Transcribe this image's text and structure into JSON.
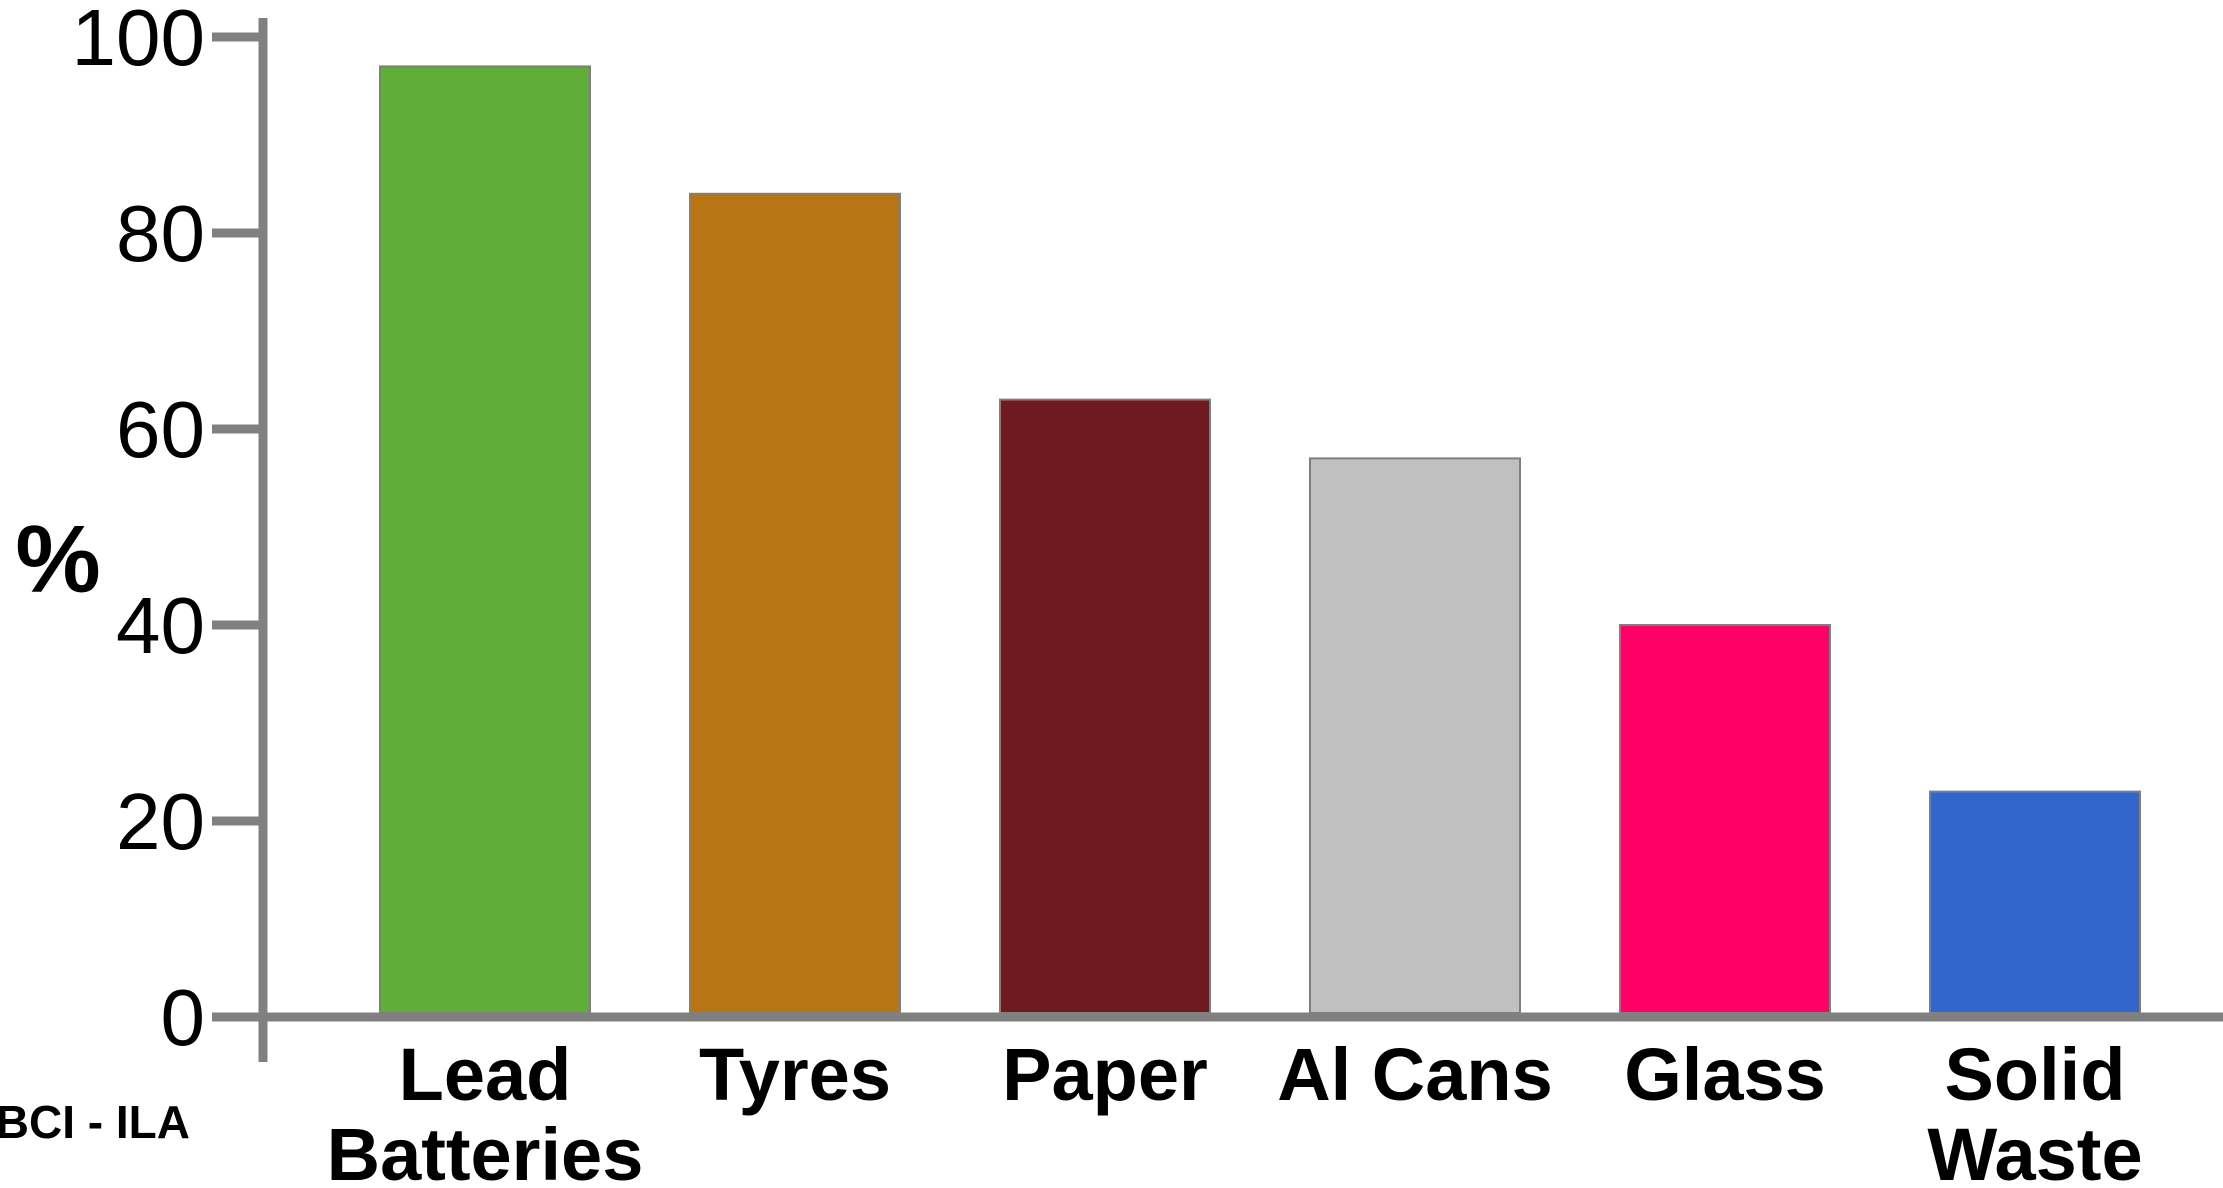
{
  "chart_data": {
    "type": "bar",
    "title": "",
    "xlabel": "",
    "ylabel": "%",
    "ylim": [
      0,
      100
    ],
    "yticks": [
      0,
      20,
      40,
      60,
      80,
      100
    ],
    "grid": false,
    "legend": "none",
    "categories": [
      [
        "Lead",
        "Batteries"
      ],
      [
        "Tyres"
      ],
      [
        "Paper"
      ],
      [
        "Al Cans"
      ],
      [
        "Glass"
      ],
      [
        "Solid",
        "Waste"
      ]
    ],
    "values": [
      97,
      84,
      63,
      57,
      40,
      23
    ],
    "colors": [
      "#60ad37",
      "#b87513",
      "#6e1a1e",
      "#c0c0c0",
      "#ff0066",
      "#3366cc"
    ],
    "axis_color": "#808080",
    "source_note": "BCI - ILA"
  }
}
